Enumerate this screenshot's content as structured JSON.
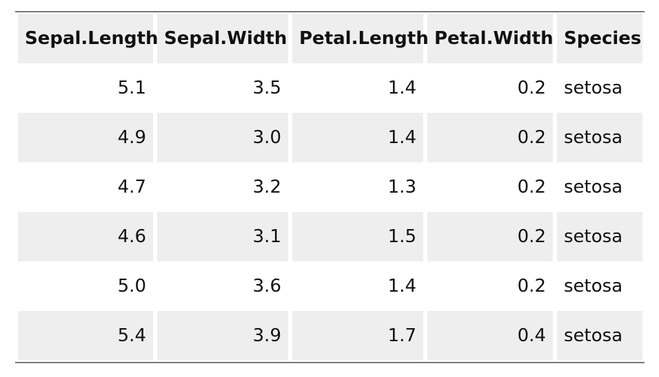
{
  "table": {
    "columns": [
      "Sepal.Length",
      "Sepal.Width",
      "Petal.Length",
      "Petal.Width",
      "Species"
    ],
    "rows": [
      [
        "5.1",
        "3.5",
        "1.4",
        "0.2",
        "setosa"
      ],
      [
        "4.9",
        "3.0",
        "1.4",
        "0.2",
        "setosa"
      ],
      [
        "4.7",
        "3.2",
        "1.3",
        "0.2",
        "setosa"
      ],
      [
        "4.6",
        "3.1",
        "1.5",
        "0.2",
        "setosa"
      ],
      [
        "5.0",
        "3.6",
        "1.4",
        "0.2",
        "setosa"
      ],
      [
        "5.4",
        "3.9",
        "1.7",
        "0.4",
        "setosa"
      ]
    ]
  }
}
